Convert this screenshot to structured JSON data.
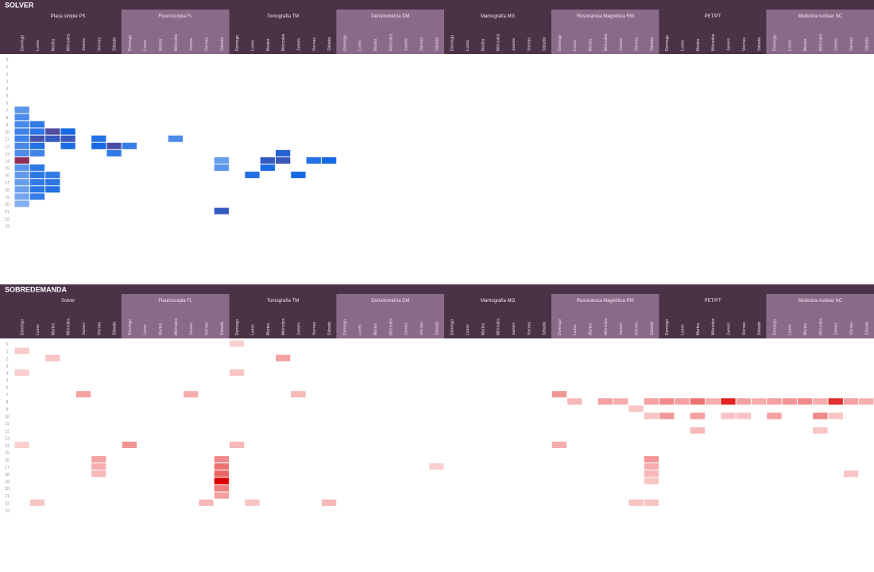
{
  "colors": {
    "header_dark": "#4a3247",
    "header_light": "#8a6a89",
    "blue_low": "#eef4fd",
    "blue_high": "#1668e3",
    "purple_hot": "#8e2f5a",
    "red_hot": "#dc0000",
    "red_low": "#fde6e6"
  },
  "chart_data": [
    {
      "type": "heatmap",
      "title": "SOLVER",
      "groups": [
        "Placa simple PS",
        "Fluoroscopia FL",
        "Tomografía TM",
        "Densitometría DM",
        "Mamografía MG",
        "Resonancia Magnética RM",
        "PET/PT",
        "Medicina nuclear NC"
      ],
      "days": [
        "Domingo",
        "Lunes",
        "Martes",
        "Miércoles",
        "Jueves",
        "Viernes",
        "Sábado"
      ],
      "hours": [
        "0",
        "1",
        "2",
        "3",
        "4",
        "5",
        "6",
        "7",
        "8",
        "9",
        "10",
        "11",
        "12",
        "13",
        "14",
        "15",
        "16",
        "17",
        "18",
        "19",
        "20",
        "21",
        "22",
        "23"
      ],
      "value_range": [
        0,
        100
      ],
      "cells": [
        {
          "g": 0,
          "d": 0,
          "h": 7,
          "v": 55
        },
        {
          "g": 0,
          "d": 0,
          "h": 8,
          "v": 60
        },
        {
          "g": 0,
          "d": 0,
          "h": 9,
          "v": 62
        },
        {
          "g": 0,
          "d": 0,
          "h": 10,
          "v": 65
        },
        {
          "g": 0,
          "d": 0,
          "h": 11,
          "v": 66
        },
        {
          "g": 0,
          "d": 0,
          "h": 12,
          "v": 62
        },
        {
          "g": 0,
          "d": 0,
          "h": 13,
          "v": 60
        },
        {
          "g": 0,
          "d": 0,
          "h": 14,
          "v": 100
        },
        {
          "g": 0,
          "d": 0,
          "h": 15,
          "v": 55
        },
        {
          "g": 0,
          "d": 0,
          "h": 16,
          "v": 52
        },
        {
          "g": 0,
          "d": 0,
          "h": 17,
          "v": 50
        },
        {
          "g": 0,
          "d": 0,
          "h": 18,
          "v": 48
        },
        {
          "g": 0,
          "d": 0,
          "h": 19,
          "v": 45
        },
        {
          "g": 0,
          "d": 0,
          "h": 20,
          "v": 40
        },
        {
          "g": 0,
          "d": 1,
          "h": 9,
          "v": 70
        },
        {
          "g": 0,
          "d": 1,
          "h": 10,
          "v": 72
        },
        {
          "g": 0,
          "d": 1,
          "h": 11,
          "v": 88
        },
        {
          "g": 0,
          "d": 1,
          "h": 12,
          "v": 75
        },
        {
          "g": 0,
          "d": 1,
          "h": 13,
          "v": 65
        },
        {
          "g": 0,
          "d": 1,
          "h": 15,
          "v": 70
        },
        {
          "g": 0,
          "d": 1,
          "h": 16,
          "v": 72
        },
        {
          "g": 0,
          "d": 1,
          "h": 17,
          "v": 70
        },
        {
          "g": 0,
          "d": 1,
          "h": 18,
          "v": 72
        },
        {
          "g": 0,
          "d": 1,
          "h": 19,
          "v": 68
        },
        {
          "g": 0,
          "d": 2,
          "h": 10,
          "v": 90
        },
        {
          "g": 0,
          "d": 2,
          "h": 11,
          "v": 85
        },
        {
          "g": 0,
          "d": 2,
          "h": 16,
          "v": 70
        },
        {
          "g": 0,
          "d": 2,
          "h": 17,
          "v": 72
        },
        {
          "g": 0,
          "d": 2,
          "h": 18,
          "v": 75
        },
        {
          "g": 0,
          "d": 3,
          "h": 11,
          "v": 86
        },
        {
          "g": 0,
          "d": 3,
          "h": 10,
          "v": 80
        },
        {
          "g": 0,
          "d": 3,
          "h": 12,
          "v": 78
        },
        {
          "g": 0,
          "d": 5,
          "h": 12,
          "v": 80
        },
        {
          "g": 0,
          "d": 5,
          "h": 11,
          "v": 75
        },
        {
          "g": 0,
          "d": 6,
          "h": 12,
          "v": 89
        },
        {
          "g": 0,
          "d": 6,
          "h": 13,
          "v": 70
        },
        {
          "g": 1,
          "d": 0,
          "h": 12,
          "v": 68
        },
        {
          "g": 1,
          "d": 3,
          "h": 11,
          "v": 60
        },
        {
          "g": 1,
          "d": 6,
          "h": 15,
          "v": 55
        },
        {
          "g": 1,
          "d": 6,
          "h": 14,
          "v": 50
        },
        {
          "g": 2,
          "d": 2,
          "h": 14,
          "v": 85
        },
        {
          "g": 2,
          "d": 3,
          "h": 13,
          "v": 82
        },
        {
          "g": 2,
          "d": 3,
          "h": 14,
          "v": 86
        },
        {
          "g": 2,
          "d": 4,
          "h": 16,
          "v": 80
        },
        {
          "g": 2,
          "d": 2,
          "h": 15,
          "v": 78
        },
        {
          "g": 2,
          "d": 5,
          "h": 14,
          "v": 75
        },
        {
          "g": 2,
          "d": 6,
          "h": 14,
          "v": 80
        },
        {
          "g": 2,
          "d": 1,
          "h": 16,
          "v": 76
        },
        {
          "g": 1,
          "d": 6,
          "h": 21,
          "v": 85
        }
      ]
    },
    {
      "type": "heatmap",
      "title": "SOBREDEMANDA",
      "groups": [
        "Solver",
        "Fluoroscopia FL",
        "Tomografía TM",
        "Densitometría DM",
        "Mamografía MG",
        "Resonancia Magnética RM",
        "PET/PT",
        "Medicina nuclear NC"
      ],
      "days": [
        "Domingo",
        "Lunes",
        "Martes",
        "Miércoles",
        "Jueves",
        "Viernes",
        "Sábado"
      ],
      "hours": [
        "0",
        "1",
        "2",
        "3",
        "4",
        "5",
        "6",
        "7",
        "8",
        "9",
        "10",
        "11",
        "12",
        "13",
        "14",
        "15",
        "16",
        "17",
        "18",
        "19",
        "20",
        "21",
        "22",
        "23"
      ],
      "value_range": [
        0,
        100
      ],
      "cells": [
        {
          "g": 0,
          "d": 0,
          "h": 1,
          "v": 12
        },
        {
          "g": 0,
          "d": 2,
          "h": 2,
          "v": 15
        },
        {
          "g": 0,
          "d": 0,
          "h": 4,
          "v": 10
        },
        {
          "g": 0,
          "d": 4,
          "h": 7,
          "v": 30
        },
        {
          "g": 0,
          "d": 0,
          "h": 14,
          "v": 10
        },
        {
          "g": 0,
          "d": 1,
          "h": 22,
          "v": 15
        },
        {
          "g": 0,
          "d": 5,
          "h": 17,
          "v": 25
        },
        {
          "g": 0,
          "d": 5,
          "h": 16,
          "v": 30
        },
        {
          "g": 0,
          "d": 5,
          "h": 18,
          "v": 20
        },
        {
          "g": 1,
          "d": 4,
          "h": 7,
          "v": 25
        },
        {
          "g": 1,
          "d": 0,
          "h": 14,
          "v": 35
        },
        {
          "g": 1,
          "d": 6,
          "h": 16,
          "v": 40
        },
        {
          "g": 1,
          "d": 6,
          "h": 17,
          "v": 50
        },
        {
          "g": 1,
          "d": 6,
          "h": 18,
          "v": 55
        },
        {
          "g": 1,
          "d": 6,
          "h": 19,
          "v": 100
        },
        {
          "g": 1,
          "d": 6,
          "h": 20,
          "v": 45
        },
        {
          "g": 1,
          "d": 6,
          "h": 21,
          "v": 30
        },
        {
          "g": 1,
          "d": 5,
          "h": 22,
          "v": 20
        },
        {
          "g": 2,
          "d": 0,
          "h": 0,
          "v": 10
        },
        {
          "g": 2,
          "d": 3,
          "h": 2,
          "v": 30
        },
        {
          "g": 2,
          "d": 0,
          "h": 4,
          "v": 15
        },
        {
          "g": 2,
          "d": 4,
          "h": 7,
          "v": 20
        },
        {
          "g": 2,
          "d": 0,
          "h": 14,
          "v": 20
        },
        {
          "g": 2,
          "d": 1,
          "h": 22,
          "v": 15
        },
        {
          "g": 2,
          "d": 6,
          "h": 22,
          "v": 20
        },
        {
          "g": 3,
          "d": 6,
          "h": 17,
          "v": 10
        },
        {
          "g": 5,
          "d": 0,
          "h": 7,
          "v": 35
        },
        {
          "g": 5,
          "d": 1,
          "h": 8,
          "v": 20
        },
        {
          "g": 5,
          "d": 3,
          "h": 8,
          "v": 30
        },
        {
          "g": 5,
          "d": 4,
          "h": 8,
          "v": 25
        },
        {
          "g": 5,
          "d": 6,
          "h": 8,
          "v": 30
        },
        {
          "g": 5,
          "d": 5,
          "h": 9,
          "v": 15
        },
        {
          "g": 5,
          "d": 6,
          "h": 10,
          "v": 15
        },
        {
          "g": 5,
          "d": 0,
          "h": 14,
          "v": 25
        },
        {
          "g": 5,
          "d": 6,
          "h": 16,
          "v": 35
        },
        {
          "g": 5,
          "d": 6,
          "h": 17,
          "v": 25
        },
        {
          "g": 5,
          "d": 6,
          "h": 18,
          "v": 20
        },
        {
          "g": 5,
          "d": 6,
          "h": 19,
          "v": 15
        },
        {
          "g": 5,
          "d": 5,
          "h": 22,
          "v": 15
        },
        {
          "g": 5,
          "d": 6,
          "h": 22,
          "v": 15
        },
        {
          "g": 6,
          "d": 0,
          "h": 8,
          "v": 40
        },
        {
          "g": 6,
          "d": 1,
          "h": 8,
          "v": 30
        },
        {
          "g": 6,
          "d": 2,
          "h": 8,
          "v": 50
        },
        {
          "g": 6,
          "d": 3,
          "h": 8,
          "v": 25
        },
        {
          "g": 6,
          "d": 4,
          "h": 8,
          "v": 85
        },
        {
          "g": 6,
          "d": 5,
          "h": 8,
          "v": 30
        },
        {
          "g": 6,
          "d": 6,
          "h": 8,
          "v": 25
        },
        {
          "g": 6,
          "d": 0,
          "h": 10,
          "v": 35
        },
        {
          "g": 6,
          "d": 2,
          "h": 10,
          "v": 30
        },
        {
          "g": 6,
          "d": 4,
          "h": 10,
          "v": 15
        },
        {
          "g": 6,
          "d": 5,
          "h": 10,
          "v": 15
        },
        {
          "g": 6,
          "d": 2,
          "h": 12,
          "v": 20
        },
        {
          "g": 7,
          "d": 0,
          "h": 8,
          "v": 30
        },
        {
          "g": 7,
          "d": 1,
          "h": 8,
          "v": 35
        },
        {
          "g": 7,
          "d": 2,
          "h": 8,
          "v": 40
        },
        {
          "g": 7,
          "d": 3,
          "h": 8,
          "v": 25
        },
        {
          "g": 7,
          "d": 4,
          "h": 8,
          "v": 80
        },
        {
          "g": 7,
          "d": 5,
          "h": 8,
          "v": 30
        },
        {
          "g": 7,
          "d": 6,
          "h": 8,
          "v": 25
        },
        {
          "g": 7,
          "d": 0,
          "h": 10,
          "v": 30
        },
        {
          "g": 7,
          "d": 3,
          "h": 10,
          "v": 40
        },
        {
          "g": 7,
          "d": 4,
          "h": 10,
          "v": 15
        },
        {
          "g": 7,
          "d": 3,
          "h": 12,
          "v": 15
        },
        {
          "g": 7,
          "d": 5,
          "h": 18,
          "v": 15
        }
      ]
    }
  ]
}
